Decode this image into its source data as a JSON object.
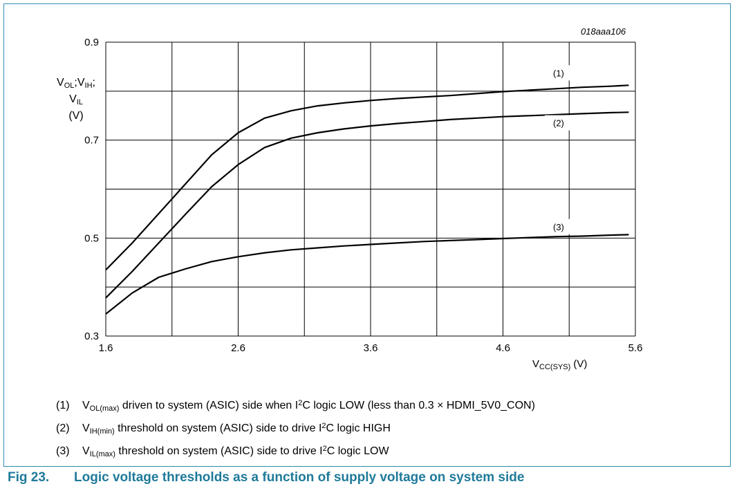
{
  "figure_id": "018aaa106",
  "ylabel": {
    "v": "V",
    "ol": "OL",
    "sep1": ";V",
    "ih": "IH",
    "sep2": ";",
    "v2": "V",
    "il": "IL",
    "unit": "(V)"
  },
  "xlabel": {
    "v": "V",
    "sub": "CC(SYS)",
    "unit": "(V)"
  },
  "chart_data": {
    "type": "line",
    "xlim": [
      1.6,
      5.6
    ],
    "ylim": [
      0.3,
      0.9
    ],
    "x_ticks": [
      "1.6",
      "2.6",
      "3.6",
      "4.6",
      "5.6"
    ],
    "x_grid": [
      1.6,
      2.1,
      2.6,
      3.1,
      3.6,
      4.1,
      4.6,
      5.1,
      5.6
    ],
    "y_ticks": [
      "0.3",
      "0.5",
      "0.7",
      "0.9"
    ],
    "y_grid": [
      0.3,
      0.4,
      0.5,
      0.6,
      0.7,
      0.8,
      0.9
    ],
    "grid": true,
    "x": [
      1.6,
      1.8,
      2.0,
      2.2,
      2.4,
      2.6,
      2.8,
      3.0,
      3.2,
      3.4,
      3.6,
      3.8,
      4.0,
      4.2,
      4.4,
      4.6,
      4.8,
      5.0,
      5.2,
      5.4,
      5.55
    ],
    "series": [
      {
        "label": "(1)",
        "label_at": [
          4.9,
          0.836
        ],
        "values": [
          0.435,
          0.49,
          0.55,
          0.61,
          0.67,
          0.715,
          0.745,
          0.76,
          0.77,
          0.776,
          0.781,
          0.785,
          0.788,
          0.791,
          0.795,
          0.799,
          0.802,
          0.805,
          0.808,
          0.81,
          0.812
        ]
      },
      {
        "label": "(2)",
        "label_at": [
          4.9,
          0.734
        ],
        "values": [
          0.378,
          0.432,
          0.49,
          0.548,
          0.605,
          0.65,
          0.685,
          0.704,
          0.715,
          0.723,
          0.729,
          0.734,
          0.738,
          0.742,
          0.745,
          0.748,
          0.75,
          0.752,
          0.754,
          0.756,
          0.757
        ]
      },
      {
        "label": "(3)",
        "label_at": [
          4.9,
          0.522
        ],
        "values": [
          0.345,
          0.388,
          0.42,
          0.437,
          0.452,
          0.462,
          0.47,
          0.476,
          0.48,
          0.484,
          0.487,
          0.49,
          0.493,
          0.495,
          0.497,
          0.499,
          0.501,
          0.503,
          0.504,
          0.506,
          0.507
        ]
      }
    ]
  },
  "notes": [
    {
      "num": "(1)",
      "v": "V",
      "sub": "OL(max)",
      "pre": " driven to system (ASIC) side when I",
      "sup": "2",
      "post": "C logic LOW (less than 0.3 × HDMI_5V0_CON)"
    },
    {
      "num": "(2)",
      "v": "V",
      "sub": "IH(min)",
      "pre": " threshold on system (ASIC) side to drive I",
      "sup": "2",
      "post": "C logic HIGH"
    },
    {
      "num": "(3)",
      "v": "V",
      "sub": "IL(max)",
      "pre": " threshold on system (ASIC) side to drive I",
      "sup": "2",
      "post": "C logic LOW"
    }
  ],
  "caption": {
    "label": "Fig 23.",
    "text": "Logic voltage thresholds as a function of supply voltage on system side"
  }
}
